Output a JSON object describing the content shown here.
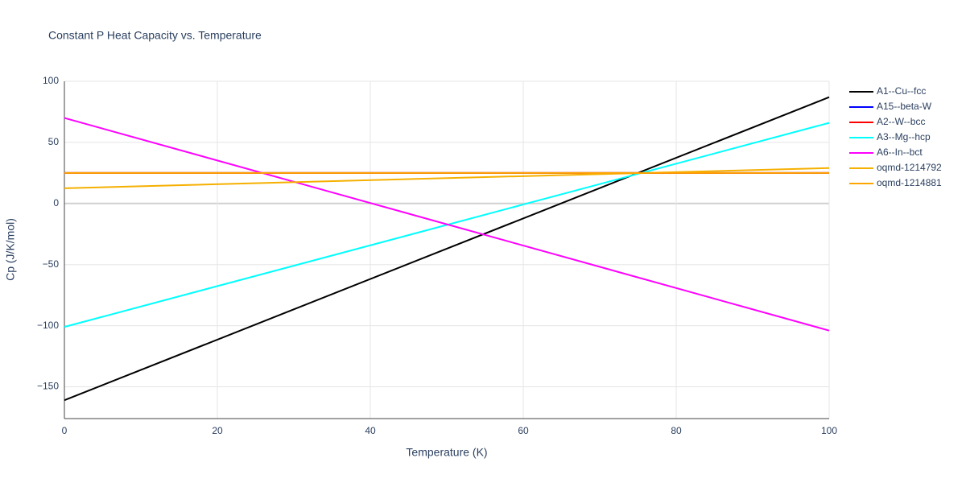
{
  "chart_data": {
    "type": "line",
    "title": "Constant P Heat Capacity vs. Temperature",
    "x_label": "Temperature (K)",
    "y_label": "Cp (J/K/mol)",
    "x": [
      0,
      100
    ],
    "series": [
      {
        "name": "A1--Cu--fcc",
        "color": "#000000",
        "values": [
          -161,
          87
        ]
      },
      {
        "name": "A15--beta-W",
        "color": "#0000ff",
        "values": [
          25,
          25
        ]
      },
      {
        "name": "A2--W--bcc",
        "color": "#ff0000",
        "values": [
          25,
          25
        ]
      },
      {
        "name": "A3--Mg--hcp",
        "color": "#00ffff",
        "values": [
          -101,
          66
        ]
      },
      {
        "name": "A6--In--bct",
        "color": "#ff00ff",
        "values": [
          70,
          -104
        ]
      },
      {
        "name": "oqmd-1214792",
        "color": "#f5b000",
        "values": [
          12.5,
          29
        ]
      },
      {
        "name": "oqmd-1214881",
        "color": "#ffa500",
        "values": [
          25,
          25
        ]
      }
    ],
    "xlim": [
      0,
      100
    ],
    "xticks": [
      0,
      20,
      40,
      60,
      80,
      100
    ],
    "ylim": [
      -176,
      100
    ],
    "yticks": [
      {
        "value": -150,
        "label": "−150"
      },
      {
        "value": -100,
        "label": "−100"
      },
      {
        "value": -50,
        "label": "−50"
      },
      0,
      50,
      100
    ],
    "grid": true,
    "legend": "right"
  }
}
